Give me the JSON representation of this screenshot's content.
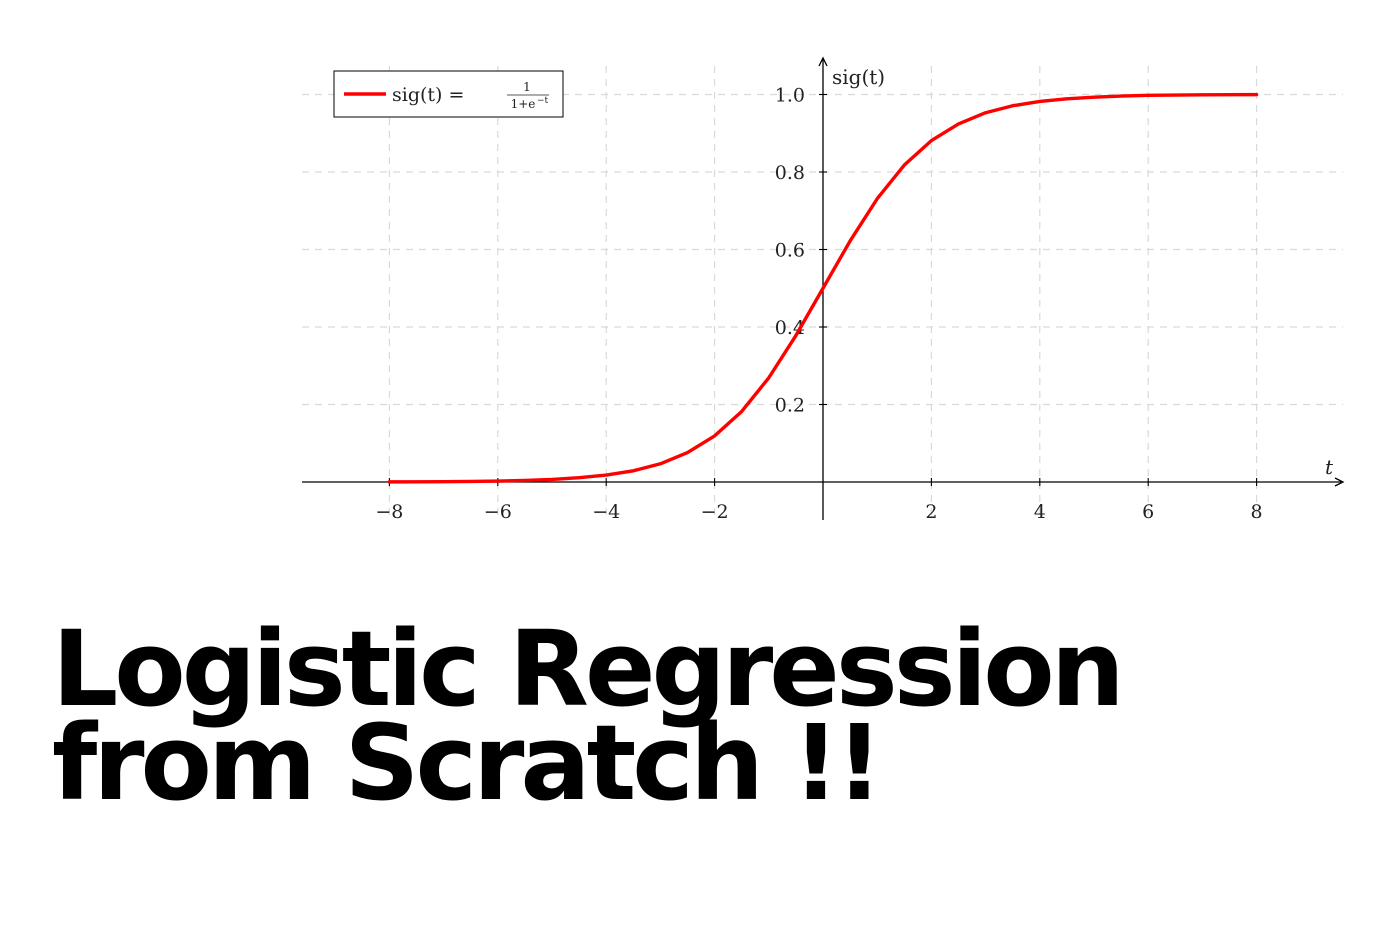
{
  "headline": {
    "line1": "Logistic Regression",
    "line2": "from Scratch !!"
  },
  "chart_data": {
    "type": "line",
    "xlabel": "t",
    "ylabel": "sig(t)",
    "xlim": [
      -9.6,
      9.6
    ],
    "ylim": [
      0,
      1.12
    ],
    "xticks": [
      -8,
      -6,
      -4,
      -2,
      2,
      4,
      6,
      8
    ],
    "yticks": [
      0.2,
      0.4,
      0.6,
      0.8,
      1.0
    ],
    "xtick_labels": [
      "−8",
      "−6",
      "−4",
      "−2",
      "2",
      "4",
      "6",
      "8"
    ],
    "ytick_labels": [
      "0.2",
      "0.4",
      "0.6",
      "0.8",
      "1.0"
    ],
    "grid": true,
    "legend_position": "top-left",
    "legend": {
      "lhs": "sig(t) = ",
      "numerator": "1",
      "denominator": "1+e",
      "exponent": "−t"
    },
    "series": [
      {
        "name": "sig(t)",
        "color": "#ff0000",
        "x": [
          -8,
          -7.5,
          -7,
          -6.5,
          -6,
          -5.5,
          -5,
          -4.5,
          -4,
          -3.5,
          -3,
          -2.5,
          -2,
          -1.5,
          -1,
          -0.5,
          0,
          0.5,
          1,
          1.5,
          2,
          2.5,
          3,
          3.5,
          4,
          4.5,
          5,
          5.5,
          6,
          6.5,
          7,
          7.5,
          8
        ],
        "y": [
          0.0003,
          0.0006,
          0.0009,
          0.0015,
          0.0025,
          0.0041,
          0.0067,
          0.011,
          0.018,
          0.029,
          0.047,
          0.076,
          0.119,
          0.182,
          0.269,
          0.378,
          0.5,
          0.622,
          0.731,
          0.818,
          0.881,
          0.924,
          0.953,
          0.971,
          0.982,
          0.989,
          0.993,
          0.996,
          0.998,
          0.9985,
          0.9991,
          0.9994,
          0.9997
        ]
      }
    ],
    "colors": {
      "grid": "#d9d9d9",
      "axis": "#000000",
      "curve": "#ff0000"
    }
  }
}
